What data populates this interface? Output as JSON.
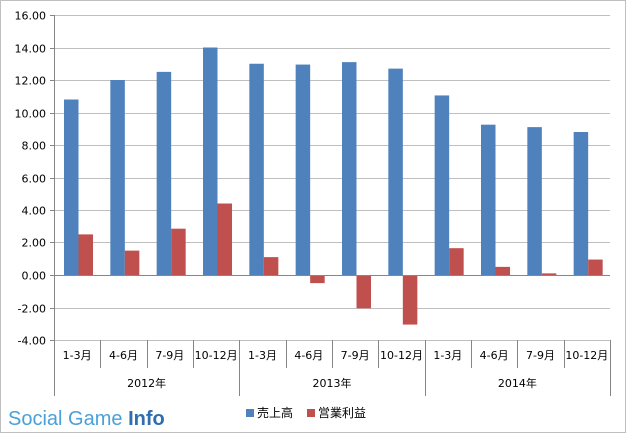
{
  "chart_data": {
    "type": "bar",
    "categories": [
      "1-3月",
      "4-6月",
      "7-9月",
      "10-12月",
      "1-3月",
      "4-6月",
      "7-9月",
      "10-12月",
      "1-3月",
      "4-6月",
      "7-9月",
      "10-12月"
    ],
    "groups": [
      {
        "label": "2012年",
        "count": 4
      },
      {
        "label": "2013年",
        "count": 4
      },
      {
        "label": "2014年",
        "count": 4
      }
    ],
    "series": [
      {
        "name": "売上高",
        "color": "#4f81bd",
        "values": [
          10.8,
          12.0,
          12.5,
          14.0,
          13.0,
          12.95,
          13.1,
          12.7,
          11.05,
          9.25,
          9.1,
          8.8
        ]
      },
      {
        "name": "営業利益",
        "color": "#c0504d",
        "values": [
          2.5,
          1.5,
          2.85,
          4.4,
          1.1,
          -0.5,
          -2.05,
          -3.05,
          1.65,
          0.5,
          0.1,
          0.95
        ]
      }
    ],
    "ylim": [
      -4.0,
      16.0
    ],
    "yticks": [
      "16.00",
      "14.00",
      "12.00",
      "10.00",
      "8.00",
      "6.00",
      "4.00",
      "2.00",
      "0.00",
      "-2.00",
      "-4.00"
    ],
    "grid": true,
    "legend_position": "bottom"
  },
  "watermark": {
    "part1": "Social Game ",
    "part2": "Info"
  }
}
